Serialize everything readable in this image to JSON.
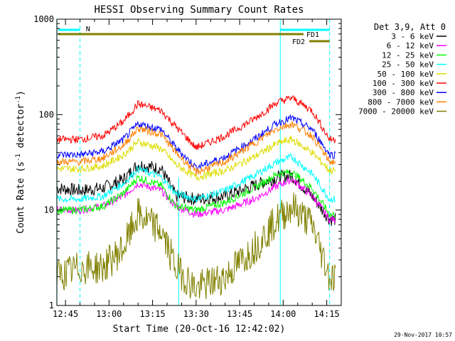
{
  "chart_data": {
    "type": "line",
    "title": "HESSI Observing Summary Count Rates",
    "xlabel": "Start Time (20-Oct-16 12:42:02)",
    "ylabel_main": "Count Rate (s",
    "ylabel_sup1": "-1",
    "ylabel_mid": " detector",
    "ylabel_sup2": "-1",
    "ylabel_end": ")",
    "yscale": "log",
    "ylim": [
      1,
      1000
    ],
    "xlim": [
      "12:42",
      "14:20"
    ],
    "y_tick_labels": [
      {
        "value": 1,
        "label": "1"
      },
      {
        "value": 10,
        "label": "10"
      },
      {
        "value": 100,
        "label": "100"
      },
      {
        "value": 1000,
        "label": "1000"
      }
    ],
    "x_tick_labels": [
      {
        "value": "12:45",
        "label": "12:45"
      },
      {
        "value": "13:00",
        "label": "13:00"
      },
      {
        "value": "13:15",
        "label": "13:15"
      },
      {
        "value": "13:30",
        "label": "13:30"
      },
      {
        "value": "13:45",
        "label": "13:45"
      },
      {
        "value": "14:00",
        "label": "14:00"
      },
      {
        "value": "14:15",
        "label": "14:15"
      }
    ],
    "legend_title": "Det 3,9, Att 0",
    "legend_position": "right",
    "series": [
      {
        "name": "3 - 6 keV",
        "color": "#000000",
        "x": [
          "12:42",
          "12:50",
          "12:58",
          "13:05",
          "13:10",
          "13:18",
          "13:23",
          "13:30",
          "13:40",
          "13:50",
          "13:58",
          "14:03",
          "14:10",
          "14:16"
        ],
        "values": [
          17,
          16,
          17,
          21,
          30,
          27,
          14,
          13,
          14,
          18,
          22,
          23,
          14,
          8
        ]
      },
      {
        "name": "6 - 12 keV",
        "color": "#ff00ff",
        "x": [
          "12:42",
          "12:50",
          "12:58",
          "13:05",
          "13:10",
          "13:18",
          "13:23",
          "13:30",
          "13:40",
          "13:50",
          "13:58",
          "14:03",
          "14:10",
          "14:16"
        ],
        "values": [
          10,
          10,
          11,
          14,
          19,
          16,
          11,
          9,
          10,
          13,
          18,
          21,
          14,
          8
        ]
      },
      {
        "name": "12 - 25 keV",
        "color": "#00ff00",
        "x": [
          "12:42",
          "12:50",
          "12:58",
          "13:05",
          "13:10",
          "13:18",
          "13:23",
          "13:30",
          "13:40",
          "13:50",
          "13:58",
          "14:03",
          "14:10",
          "14:16"
        ],
        "values": [
          10,
          10,
          11,
          15,
          22,
          18,
          11,
          10,
          12,
          17,
          24,
          25,
          17,
          9
        ]
      },
      {
        "name": "25 - 50 keV",
        "color": "#00ffff",
        "x": [
          "12:42",
          "12:50",
          "12:58",
          "13:05",
          "13:10",
          "13:18",
          "13:23",
          "13:30",
          "13:40",
          "13:50",
          "13:58",
          "14:03",
          "14:10",
          "14:16"
        ],
        "values": [
          13,
          13,
          14,
          19,
          27,
          22,
          15,
          13,
          16,
          23,
          32,
          36,
          24,
          13
        ]
      },
      {
        "name": "50 - 100 keV",
        "color": "#dddd00",
        "x": [
          "12:42",
          "12:50",
          "12:58",
          "13:05",
          "13:10",
          "13:18",
          "13:23",
          "13:30",
          "13:40",
          "13:50",
          "13:58",
          "14:03",
          "14:10",
          "14:16"
        ],
        "values": [
          27,
          27,
          29,
          38,
          52,
          44,
          30,
          22,
          26,
          36,
          50,
          55,
          40,
          26
        ]
      },
      {
        "name": "100 - 300 keV",
        "color": "#ff0000",
        "x": [
          "12:42",
          "12:50",
          "12:58",
          "13:05",
          "13:10",
          "13:18",
          "13:23",
          "13:30",
          "13:40",
          "13:50",
          "13:58",
          "14:03",
          "14:10",
          "14:16"
        ],
        "values": [
          55,
          55,
          60,
          85,
          130,
          110,
          75,
          45,
          60,
          90,
          135,
          150,
          110,
          55
        ]
      },
      {
        "name": "300 - 800 keV",
        "color": "#0000ff",
        "x": [
          "12:42",
          "12:50",
          "12:58",
          "13:05",
          "13:10",
          "13:18",
          "13:23",
          "13:30",
          "13:40",
          "13:50",
          "13:58",
          "14:03",
          "14:10",
          "14:16"
        ],
        "values": [
          38,
          38,
          41,
          55,
          80,
          70,
          45,
          28,
          36,
          55,
          82,
          92,
          70,
          38
        ]
      },
      {
        "name": "800 - 7000 keV",
        "color": "#ff8000",
        "x": [
          "12:42",
          "12:50",
          "12:58",
          "13:05",
          "13:10",
          "13:18",
          "13:23",
          "13:30",
          "13:40",
          "13:50",
          "13:58",
          "14:03",
          "14:10",
          "14:16"
        ],
        "values": [
          32,
          32,
          35,
          48,
          72,
          62,
          40,
          25,
          32,
          50,
          72,
          80,
          60,
          32
        ]
      },
      {
        "name": "7000 - 20000 keV",
        "color": "#808000",
        "x": [
          "12:42",
          "12:50",
          "12:58",
          "13:05",
          "13:10",
          "13:18",
          "13:23",
          "13:30",
          "13:40",
          "13:50",
          "13:58",
          "14:03",
          "14:10",
          "14:16"
        ],
        "values": [
          2,
          2.5,
          2.5,
          4,
          9,
          6,
          2.5,
          1.5,
          2,
          4,
          8,
          11,
          7,
          2
        ]
      }
    ],
    "annotations": {
      "n_label": "N",
      "fd1_label": "FD1",
      "fd2_label": "FD2"
    },
    "grid": false
  },
  "timestamp": "29-Nov-2017 10:57"
}
